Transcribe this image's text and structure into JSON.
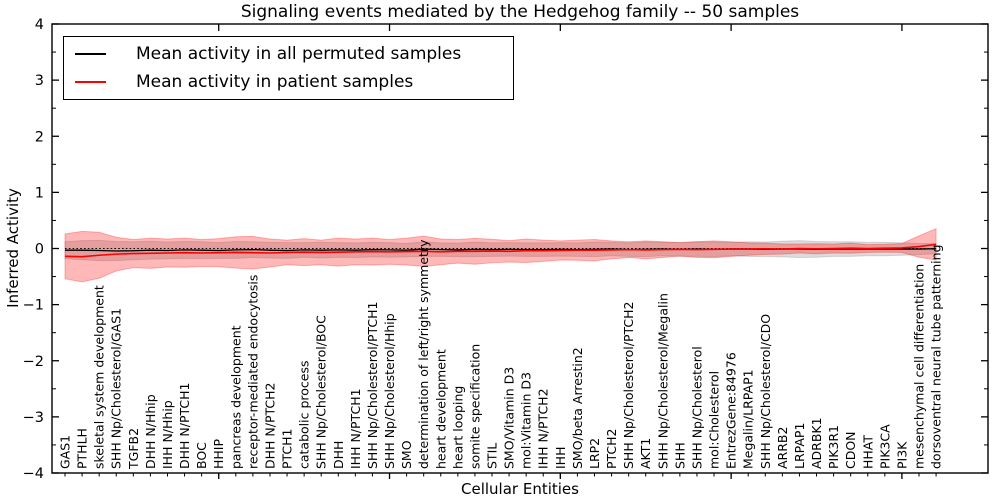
{
  "chart_data": {
    "type": "line",
    "title": "Signaling events mediated by the Hedgehog family -- 50 samples",
    "xlabel": "Cellular Entities",
    "ylabel": "Inferred Activity",
    "ylim": [
      -4,
      4
    ],
    "yticks": [
      -4,
      -3,
      -2,
      -1,
      0,
      1,
      2,
      3,
      4
    ],
    "ytick_labels": [
      "−4",
      "−3",
      "−2",
      "−1",
      "0",
      "1",
      "2",
      "3",
      "4"
    ],
    "minor_ytick_step": 0.5,
    "xtick_positions": [
      10,
      20,
      30,
      40,
      50
    ],
    "grid": false,
    "legend_position": "upper left",
    "zero_line": 0,
    "categories": [
      "GAS1",
      "PTHLH",
      "skeletal system development",
      "SHH Np/Cholesterol/GAS1",
      "TGFB2",
      "DHH N/Hhip",
      "IHH N/Hhip",
      "DHH N/PTCH1",
      "BOC",
      "HHIP",
      "pancreas development",
      "receptor-mediated endocytosis",
      "DHH N/PTCH2",
      "PTCH1",
      "catabolic process",
      "SHH Np/Cholesterol/BOC",
      "DHH",
      "IHH N/PTCH1",
      "SHH Np/Cholesterol/PTCH1",
      "SHH Np/Cholesterol/Hhip",
      "SMO",
      "determination of left/right symmetry",
      "heart development",
      "heart looping",
      "somite specification",
      "STIL",
      "SMO/Vitamin D3",
      "mol:Vitamin D3",
      "IHH N/PTCH2",
      "IHH",
      "SMO/beta Arrestin2",
      "LRP2",
      "PTCH2",
      "SHH Np/Cholesterol/PTCH2",
      "AKT1",
      "SHH Np/Cholesterol/Megalin",
      "SHH",
      "SHH Np/Cholesterol",
      "mol:Cholesterol",
      "EntrezGene:84976",
      "Megalin/LRPAP1",
      "SHH Np/Cholesterol/CDO",
      "ARRB2",
      "LRPAP1",
      "ADRBK1",
      "PIK3R1",
      "CDON",
      "HHAT",
      "PIK3CA",
      "PI3K",
      "mesenchymal cell differentiation",
      "dorsoventral neural tube patterning"
    ],
    "series": [
      {
        "name": "Mean activity in all permuted samples",
        "color": "#000000",
        "band_color": "rgba(128,128,128,0.28)",
        "values": [
          -0.03,
          -0.03,
          -0.035,
          -0.045,
          -0.04,
          -0.03,
          -0.035,
          -0.025,
          -0.03,
          -0.035,
          -0.025,
          -0.02,
          -0.03,
          -0.035,
          -0.025,
          -0.03,
          -0.025,
          -0.03,
          -0.02,
          -0.025,
          -0.03,
          -0.01,
          -0.02,
          -0.025,
          -0.015,
          -0.02,
          -0.015,
          -0.02,
          -0.02,
          -0.015,
          -0.02,
          -0.015,
          -0.01,
          -0.02,
          -0.015,
          -0.01,
          -0.015,
          -0.01,
          -0.015,
          -0.01,
          -0.01,
          -0.015,
          -0.01,
          -0.01,
          -0.015,
          -0.01,
          -0.01,
          -0.01,
          -0.01,
          -0.01,
          -0.01,
          -0.005
        ],
        "std": [
          0.15,
          0.17,
          0.18,
          0.17,
          0.16,
          0.16,
          0.15,
          0.15,
          0.15,
          0.14,
          0.15,
          0.14,
          0.14,
          0.14,
          0.13,
          0.14,
          0.13,
          0.13,
          0.13,
          0.13,
          0.12,
          0.13,
          0.12,
          0.12,
          0.13,
          0.12,
          0.12,
          0.12,
          0.12,
          0.12,
          0.12,
          0.13,
          0.12,
          0.12,
          0.13,
          0.12,
          0.12,
          0.13,
          0.13,
          0.12,
          0.13,
          0.13,
          0.14,
          0.15,
          0.14,
          0.13,
          0.13,
          0.12,
          0.12,
          0.11,
          0.1,
          0.09
        ]
      },
      {
        "name": "Mean activity in patient samples",
        "color": "#ff0000",
        "band_color": "rgba(255,0,0,0.28)",
        "values": [
          -0.14,
          -0.145,
          -0.12,
          -0.1,
          -0.09,
          -0.085,
          -0.08,
          -0.075,
          -0.08,
          -0.075,
          -0.07,
          -0.075,
          -0.08,
          -0.07,
          -0.065,
          -0.07,
          -0.065,
          -0.06,
          -0.055,
          -0.06,
          -0.055,
          -0.05,
          -0.06,
          -0.05,
          -0.05,
          -0.045,
          -0.05,
          -0.04,
          -0.04,
          -0.035,
          -0.03,
          -0.03,
          -0.025,
          -0.02,
          -0.025,
          -0.02,
          -0.015,
          -0.02,
          -0.015,
          -0.01,
          -0.01,
          -0.005,
          -0.01,
          0.0,
          -0.005,
          0.0,
          0.005,
          0.0,
          0.005,
          0.01,
          0.035,
          0.075
        ],
        "std": [
          0.4,
          0.45,
          0.41,
          0.3,
          0.25,
          0.27,
          0.25,
          0.26,
          0.24,
          0.25,
          0.28,
          0.29,
          0.25,
          0.22,
          0.24,
          0.22,
          0.25,
          0.23,
          0.24,
          0.22,
          0.24,
          0.27,
          0.23,
          0.21,
          0.23,
          0.21,
          0.19,
          0.21,
          0.19,
          0.17,
          0.18,
          0.19,
          0.16,
          0.14,
          0.16,
          0.14,
          0.12,
          0.14,
          0.15,
          0.13,
          0.11,
          0.1,
          0.09,
          0.08,
          0.09,
          0.08,
          0.09,
          0.07,
          0.07,
          0.08,
          0.19,
          0.28
        ]
      }
    ]
  }
}
